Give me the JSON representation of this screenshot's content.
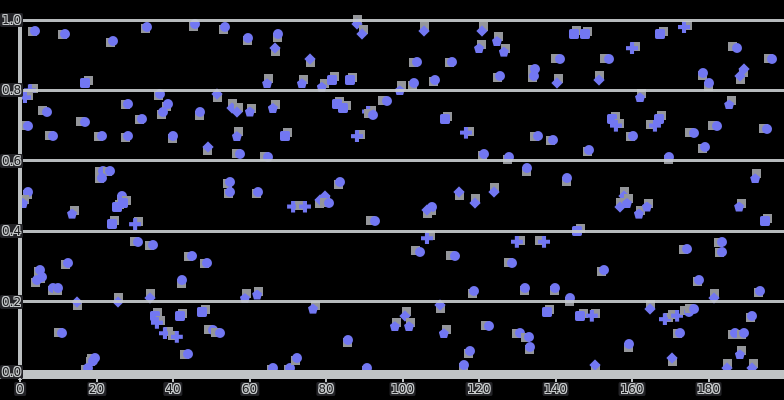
{
  "figure": {
    "title": "",
    "background": "#000000",
    "accent_blue": "#7277f2",
    "marker_shadow_gray": "#94969a",
    "grid_color": "#c6caccc",
    "tick_label_style": "outlined-gray-on-dark-chip"
  },
  "chart_data": {
    "type": "scatter",
    "title": "",
    "xlabel": "",
    "ylabel": "",
    "xlim": [
      0,
      200
    ],
    "ylim": [
      0,
      1.0
    ],
    "x_ticks": [
      0,
      20,
      40,
      60,
      80,
      100,
      120,
      140,
      160,
      180
    ],
    "x_tick_labels": [
      "0",
      "20",
      "40",
      "60",
      "80",
      "100",
      "120",
      "140",
      "160",
      "180"
    ],
    "y_ticks": [
      0.0,
      0.2,
      0.4,
      0.6,
      0.8,
      1.0
    ],
    "y_tick_labels": [
      "0.0",
      "0.2",
      "0.4",
      "0.6",
      "0.8",
      "1.0"
    ],
    "grid": "horizontal",
    "legend": "none",
    "marker_shapes": [
      "circle",
      "diamond",
      "pentagon",
      "square",
      "plus"
    ],
    "series": [
      {
        "name": "points",
        "color": "#7277f2",
        "points": [
          [
            3.9,
            0.97
          ],
          [
            11.8,
            0.96
          ],
          [
            24.3,
            0.94
          ],
          [
            33.2,
            0.98
          ],
          [
            45.8,
            0.99
          ],
          [
            53.6,
            0.98
          ],
          [
            59.6,
            0.95
          ],
          [
            67.5,
            0.96
          ],
          [
            66.7,
            0.92
          ],
          [
            75.8,
            0.89
          ],
          [
            88.1,
            0.99
          ],
          [
            89.4,
            0.96
          ],
          [
            64.6,
            0.82
          ],
          [
            73.7,
            0.82
          ],
          [
            78.9,
            0.81
          ],
          [
            81.6,
            0.83
          ],
          [
            86.3,
            0.83
          ],
          [
            17.0,
            0.82
          ],
          [
            2.6,
            0.8
          ],
          [
            1.3,
            0.78
          ],
          [
            7.1,
            0.74
          ],
          [
            17.0,
            0.71
          ],
          [
            8.6,
            0.67
          ],
          [
            2.1,
            0.7
          ],
          [
            21.4,
            0.67
          ],
          [
            28.2,
            0.76
          ],
          [
            31.9,
            0.72
          ],
          [
            28.2,
            0.67
          ],
          [
            36.6,
            0.79
          ],
          [
            38.7,
            0.76
          ],
          [
            37.4,
            0.74
          ],
          [
            40.0,
            0.67
          ],
          [
            47.1,
            0.74
          ],
          [
            49.2,
            0.64
          ],
          [
            51.5,
            0.79
          ],
          [
            55.4,
            0.75
          ],
          [
            56.7,
            0.74
          ],
          [
            56.7,
            0.67
          ],
          [
            60.1,
            0.74
          ],
          [
            66.1,
            0.75
          ],
          [
            69.3,
            0.67
          ],
          [
            82.9,
            0.76
          ],
          [
            84.4,
            0.75
          ],
          [
            88.1,
            0.67
          ],
          [
            91.0,
            0.74
          ],
          [
            92.3,
            0.73
          ],
          [
            95.9,
            0.77
          ],
          [
            57.5,
            0.62
          ],
          [
            64.8,
            0.61
          ],
          [
            21.7,
            0.57
          ],
          [
            23.5,
            0.57
          ],
          [
            21.4,
            0.55
          ],
          [
            54.9,
            0.54
          ],
          [
            54.9,
            0.51
          ],
          [
            62.2,
            0.51
          ],
          [
            83.7,
            0.54
          ],
          [
            2.1,
            0.51
          ],
          [
            26.7,
            0.5
          ],
          [
            78.4,
            0.49
          ],
          [
            79.7,
            0.5
          ],
          [
            105.6,
            0.97
          ],
          [
            120.8,
            0.97
          ],
          [
            124.7,
            0.94
          ],
          [
            126.5,
            0.91
          ],
          [
            120.0,
            0.92
          ],
          [
            144.8,
            0.96
          ],
          [
            147.7,
            0.96
          ],
          [
            167.3,
            0.96
          ],
          [
            173.6,
            0.98
          ],
          [
            160.0,
            0.92
          ],
          [
            187.5,
            0.92
          ],
          [
            154.0,
            0.89
          ],
          [
            141.2,
            0.89
          ],
          [
            196.6,
            0.89
          ],
          [
            103.8,
            0.88
          ],
          [
            112.9,
            0.88
          ],
          [
            134.6,
            0.86
          ],
          [
            125.5,
            0.84
          ],
          [
            134.4,
            0.84
          ],
          [
            108.5,
            0.83
          ],
          [
            103.0,
            0.82
          ],
          [
            178.6,
            0.85
          ],
          [
            180.1,
            0.82
          ],
          [
            189.3,
            0.86
          ],
          [
            188.2,
            0.84
          ],
          [
            151.4,
            0.83
          ],
          [
            140.4,
            0.82
          ],
          [
            99.3,
            0.8
          ],
          [
            162.1,
            0.78
          ],
          [
            185.4,
            0.76
          ],
          [
            167.1,
            0.72
          ],
          [
            111.1,
            0.72
          ],
          [
            154.8,
            0.72
          ],
          [
            155.8,
            0.7
          ],
          [
            116.6,
            0.68
          ],
          [
            166.0,
            0.7
          ],
          [
            176.2,
            0.68
          ],
          [
            182.2,
            0.7
          ],
          [
            195.3,
            0.69
          ],
          [
            135.4,
            0.67
          ],
          [
            139.3,
            0.66
          ],
          [
            160.3,
            0.67
          ],
          [
            179.1,
            0.64
          ],
          [
            148.8,
            0.63
          ],
          [
            121.3,
            0.62
          ],
          [
            127.8,
            0.61
          ],
          [
            169.7,
            0.61
          ],
          [
            132.5,
            0.58
          ],
          [
            143.0,
            0.55
          ],
          [
            114.8,
            0.51
          ],
          [
            123.9,
            0.51
          ],
          [
            157.9,
            0.5
          ],
          [
            192.2,
            0.55
          ],
          [
            0.8,
            0.48
          ],
          [
            13.6,
            0.45
          ],
          [
            24.1,
            0.42
          ],
          [
            25.4,
            0.47
          ],
          [
            26.9,
            0.48
          ],
          [
            30.1,
            0.42
          ],
          [
            71.4,
            0.47
          ],
          [
            74.5,
            0.47
          ],
          [
            80.8,
            0.48
          ],
          [
            92.8,
            0.43
          ],
          [
            30.8,
            0.37
          ],
          [
            34.8,
            0.36
          ],
          [
            45.0,
            0.33
          ],
          [
            48.9,
            0.31
          ],
          [
            12.5,
            0.31
          ],
          [
            5.2,
            0.29
          ],
          [
            5.8,
            0.27
          ],
          [
            4.4,
            0.26
          ],
          [
            8.6,
            0.24
          ],
          [
            9.9,
            0.24
          ],
          [
            42.4,
            0.26
          ],
          [
            14.9,
            0.2
          ],
          [
            25.6,
            0.2
          ],
          [
            34.0,
            0.21
          ],
          [
            58.8,
            0.21
          ],
          [
            62.0,
            0.22
          ],
          [
            76.6,
            0.18
          ],
          [
            35.3,
            0.16
          ],
          [
            41.8,
            0.16
          ],
          [
            47.6,
            0.17
          ],
          [
            35.8,
            0.14
          ],
          [
            37.9,
            0.11
          ],
          [
            41.0,
            0.1
          ],
          [
            50.5,
            0.12
          ],
          [
            52.3,
            0.11
          ],
          [
            11.0,
            0.11
          ],
          [
            43.9,
            0.05
          ],
          [
            19.6,
            0.04
          ],
          [
            19.1,
            0.03
          ],
          [
            17.8,
            0.01
          ],
          [
            66.1,
            0.01
          ],
          [
            70.6,
            0.01
          ],
          [
            72.4,
            0.04
          ],
          [
            85.8,
            0.09
          ],
          [
            90.7,
            0.01
          ],
          [
            107.7,
            0.47
          ],
          [
            106.4,
            0.46
          ],
          [
            118.9,
            0.48
          ],
          [
            156.9,
            0.47
          ],
          [
            158.7,
            0.48
          ],
          [
            161.8,
            0.45
          ],
          [
            163.9,
            0.47
          ],
          [
            188.0,
            0.47
          ],
          [
            194.8,
            0.43
          ],
          [
            145.6,
            0.4
          ],
          [
            106.4,
            0.38
          ],
          [
            129.9,
            0.37
          ],
          [
            137.0,
            0.37
          ],
          [
            104.6,
            0.34
          ],
          [
            113.7,
            0.33
          ],
          [
            128.6,
            0.31
          ],
          [
            174.4,
            0.35
          ],
          [
            183.5,
            0.37
          ],
          [
            183.5,
            0.34
          ],
          [
            152.7,
            0.29
          ],
          [
            177.5,
            0.26
          ],
          [
            193.5,
            0.23
          ],
          [
            118.7,
            0.23
          ],
          [
            132.0,
            0.24
          ],
          [
            139.9,
            0.24
          ],
          [
            143.8,
            0.21
          ],
          [
            109.8,
            0.19
          ],
          [
            181.4,
            0.21
          ],
          [
            164.7,
            0.18
          ],
          [
            100.7,
            0.16
          ],
          [
            101.7,
            0.13
          ],
          [
            98.0,
            0.13
          ],
          [
            110.8,
            0.11
          ],
          [
            137.8,
            0.17
          ],
          [
            146.4,
            0.16
          ],
          [
            149.5,
            0.16
          ],
          [
            168.6,
            0.15
          ],
          [
            171.8,
            0.16
          ],
          [
            174.9,
            0.17
          ],
          [
            176.2,
            0.18
          ],
          [
            122.6,
            0.13
          ],
          [
            130.7,
            0.11
          ],
          [
            133.1,
            0.1
          ],
          [
            172.5,
            0.11
          ],
          [
            186.9,
            0.11
          ],
          [
            189.3,
            0.11
          ],
          [
            191.4,
            0.16
          ],
          [
            117.6,
            0.06
          ],
          [
            116.1,
            0.02
          ],
          [
            133.3,
            0.07
          ],
          [
            159.2,
            0.08
          ],
          [
            170.5,
            0.04
          ],
          [
            150.3,
            0.02
          ],
          [
            184.8,
            0.01
          ],
          [
            191.4,
            0.01
          ],
          [
            188.2,
            0.05
          ]
        ]
      }
    ]
  }
}
